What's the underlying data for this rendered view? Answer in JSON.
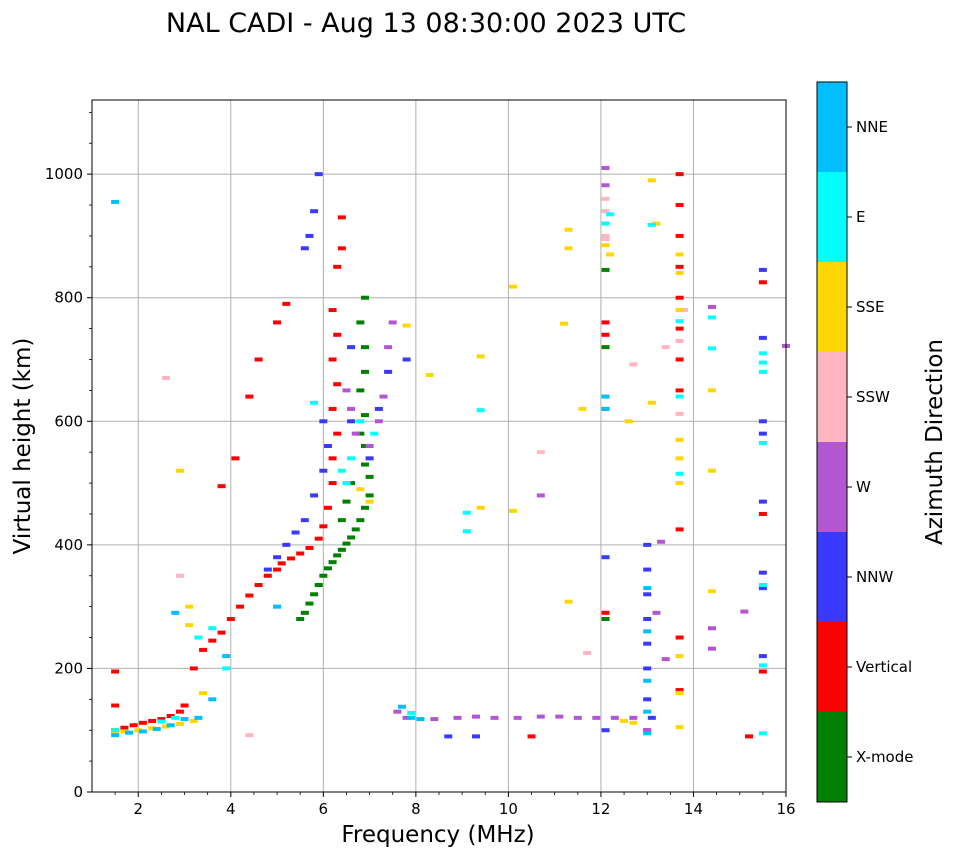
{
  "chart_data": {
    "type": "scatter",
    "title": "NAL CADI - Aug 13 08:30:00 2023 UTC",
    "xlabel": "Frequency (MHz)",
    "ylabel": "Virtual height (km)",
    "xlim": [
      1,
      16
    ],
    "ylim": [
      0,
      1120
    ],
    "xticks": [
      2,
      4,
      6,
      8,
      10,
      12,
      14,
      16
    ],
    "yticks": [
      0,
      200,
      400,
      600,
      800,
      1000
    ],
    "grid": true,
    "colorbar": {
      "label": "Azimuth Direction",
      "categories": [
        "X-mode",
        "Vertical",
        "NNW",
        "W",
        "SSW",
        "SSE",
        "E",
        "NNE"
      ],
      "colors": [
        "#008000",
        "#ff0000",
        "#3a3aff",
        "#b356d4",
        "#ffb6c1",
        "#ffd700",
        "#00ffff",
        "#00bfff"
      ]
    },
    "series": [
      {
        "name": "X-mode",
        "color": "#008000",
        "points": [
          [
            5.5,
            280
          ],
          [
            5.6,
            290
          ],
          [
            5.7,
            305
          ],
          [
            5.8,
            320
          ],
          [
            5.9,
            335
          ],
          [
            6.0,
            350
          ],
          [
            6.1,
            362
          ],
          [
            6.2,
            372
          ],
          [
            6.3,
            383
          ],
          [
            6.4,
            392
          ],
          [
            6.5,
            402
          ],
          [
            6.6,
            412
          ],
          [
            6.7,
            425
          ],
          [
            6.8,
            440
          ],
          [
            6.9,
            460
          ],
          [
            7.0,
            480
          ],
          [
            7.0,
            510
          ],
          [
            6.9,
            530
          ],
          [
            6.9,
            560
          ],
          [
            6.8,
            580
          ],
          [
            6.9,
            610
          ],
          [
            6.8,
            650
          ],
          [
            6.9,
            680
          ],
          [
            6.9,
            720
          ],
          [
            6.8,
            760
          ],
          [
            6.9,
            800
          ],
          [
            12.1,
            720
          ],
          [
            12.1,
            280
          ],
          [
            12.1,
            845
          ],
          [
            6.4,
            440
          ],
          [
            6.5,
            470
          ],
          [
            6.6,
            500
          ]
        ]
      },
      {
        "name": "Vertical",
        "color": "#ff0000",
        "points": [
          [
            1.5,
            100
          ],
          [
            1.7,
            104
          ],
          [
            1.9,
            108
          ],
          [
            2.1,
            112
          ],
          [
            2.3,
            115
          ],
          [
            2.5,
            118
          ],
          [
            2.7,
            123
          ],
          [
            2.9,
            130
          ],
          [
            3.0,
            140
          ],
          [
            3.2,
            200
          ],
          [
            3.4,
            230
          ],
          [
            3.6,
            245
          ],
          [
            3.8,
            258
          ],
          [
            4.0,
            280
          ],
          [
            4.2,
            300
          ],
          [
            4.4,
            318
          ],
          [
            4.6,
            335
          ],
          [
            4.8,
            350
          ],
          [
            5.0,
            360
          ],
          [
            5.1,
            370
          ],
          [
            5.3,
            378
          ],
          [
            5.5,
            386
          ],
          [
            5.7,
            395
          ],
          [
            5.9,
            410
          ],
          [
            6.0,
            430
          ],
          [
            6.1,
            460
          ],
          [
            6.2,
            500
          ],
          [
            6.2,
            540
          ],
          [
            6.3,
            580
          ],
          [
            6.2,
            620
          ],
          [
            6.3,
            660
          ],
          [
            6.2,
            700
          ],
          [
            6.3,
            740
          ],
          [
            6.2,
            780
          ],
          [
            6.3,
            850
          ],
          [
            6.4,
            880
          ],
          [
            6.4,
            930
          ],
          [
            5.0,
            760
          ],
          [
            5.2,
            790
          ],
          [
            4.6,
            700
          ],
          [
            4.4,
            640
          ],
          [
            4.1,
            540
          ],
          [
            3.8,
            495
          ],
          [
            1.5,
            195
          ],
          [
            1.5,
            140
          ],
          [
            12.1,
            760
          ],
          [
            12.1,
            740
          ],
          [
            12.1,
            620
          ],
          [
            12.1,
            290
          ],
          [
            13.7,
            1000
          ],
          [
            13.7,
            950
          ],
          [
            13.7,
            900
          ],
          [
            13.7,
            850
          ],
          [
            13.7,
            800
          ],
          [
            13.7,
            750
          ],
          [
            13.7,
            700
          ],
          [
            13.7,
            650
          ],
          [
            13.7,
            425
          ],
          [
            13.7,
            250
          ],
          [
            13.7,
            165
          ],
          [
            15.5,
            825
          ],
          [
            15.5,
            450
          ],
          [
            15.5,
            195
          ],
          [
            15.2,
            90
          ],
          [
            10.5,
            90
          ]
        ]
      },
      {
        "name": "NNW",
        "color": "#3a3aff",
        "points": [
          [
            5.9,
            1000
          ],
          [
            5.8,
            940
          ],
          [
            5.6,
            880
          ],
          [
            5.7,
            900
          ],
          [
            6.0,
            600
          ],
          [
            6.1,
            560
          ],
          [
            6.0,
            520
          ],
          [
            5.8,
            480
          ],
          [
            5.6,
            440
          ],
          [
            5.4,
            420
          ],
          [
            5.2,
            400
          ],
          [
            5.0,
            380
          ],
          [
            4.8,
            360
          ],
          [
            6.6,
            720
          ],
          [
            6.6,
            600
          ],
          [
            7.0,
            540
          ],
          [
            7.2,
            620
          ],
          [
            7.4,
            680
          ],
          [
            13.0,
            400
          ],
          [
            13.0,
            360
          ],
          [
            13.0,
            320
          ],
          [
            13.0,
            280
          ],
          [
            13.0,
            240
          ],
          [
            13.0,
            200
          ],
          [
            13.0,
            150
          ],
          [
            13.0,
            100
          ],
          [
            15.5,
            845
          ],
          [
            15.5,
            735
          ],
          [
            15.5,
            600
          ],
          [
            15.5,
            580
          ],
          [
            15.5,
            470
          ],
          [
            15.5,
            355
          ],
          [
            15.5,
            330
          ],
          [
            15.5,
            220
          ],
          [
            9.3,
            90
          ],
          [
            8.7,
            90
          ],
          [
            12.1,
            380
          ],
          [
            12.1,
            100
          ],
          [
            7.8,
            700
          ],
          [
            13.1,
            120
          ]
        ]
      },
      {
        "name": "W",
        "color": "#b356d4",
        "points": [
          [
            6.5,
            650
          ],
          [
            6.6,
            620
          ],
          [
            6.7,
            580
          ],
          [
            7.0,
            560
          ],
          [
            7.2,
            600
          ],
          [
            7.3,
            640
          ],
          [
            7.4,
            720
          ],
          [
            7.5,
            760
          ],
          [
            7.8,
            120
          ],
          [
            8.4,
            118
          ],
          [
            8.9,
            120
          ],
          [
            9.3,
            122
          ],
          [
            9.7,
            120
          ],
          [
            10.2,
            120
          ],
          [
            10.7,
            122
          ],
          [
            11.1,
            122
          ],
          [
            11.5,
            120
          ],
          [
            11.9,
            120
          ],
          [
            12.3,
            120
          ],
          [
            12.7,
            120
          ],
          [
            13.0,
            100
          ],
          [
            13.3,
            405
          ],
          [
            13.2,
            290
          ],
          [
            13.4,
            215
          ],
          [
            14.4,
            785
          ],
          [
            14.4,
            265
          ],
          [
            14.4,
            232
          ],
          [
            15.1,
            292
          ],
          [
            16.0,
            722
          ],
          [
            12.1,
            1010
          ],
          [
            12.1,
            982
          ],
          [
            10.7,
            480
          ],
          [
            7.6,
            130
          ]
        ]
      },
      {
        "name": "SSW",
        "color": "#ffb6c1",
        "points": [
          [
            12.1,
            960
          ],
          [
            12.1,
            940
          ],
          [
            12.1,
            900
          ],
          [
            12.7,
            692
          ],
          [
            13.7,
            612
          ],
          [
            13.7,
            730
          ],
          [
            13.8,
            780
          ],
          [
            13.4,
            720
          ],
          [
            11.7,
            225
          ],
          [
            10.7,
            550
          ],
          [
            2.9,
            350
          ],
          [
            2.6,
            670
          ],
          [
            4.4,
            92
          ],
          [
            12.1,
            895
          ]
        ]
      },
      {
        "name": "SSE",
        "color": "#ffd700",
        "points": [
          [
            1.5,
            95
          ],
          [
            1.7,
            98
          ],
          [
            2.0,
            100
          ],
          [
            2.3,
            103
          ],
          [
            2.6,
            106
          ],
          [
            2.9,
            110
          ],
          [
            3.2,
            115
          ],
          [
            3.1,
            270
          ],
          [
            3.1,
            300
          ],
          [
            3.4,
            160
          ],
          [
            2.9,
            520
          ],
          [
            6.8,
            490
          ],
          [
            7.0,
            470
          ],
          [
            7.8,
            755
          ],
          [
            8.3,
            675
          ],
          [
            9.4,
            460
          ],
          [
            9.4,
            705
          ],
          [
            10.1,
            455
          ],
          [
            10.1,
            818
          ],
          [
            11.3,
            880
          ],
          [
            11.3,
            910
          ],
          [
            11.2,
            758
          ],
          [
            11.6,
            620
          ],
          [
            11.3,
            308
          ],
          [
            12.2,
            870
          ],
          [
            12.1,
            885
          ],
          [
            12.6,
            600
          ],
          [
            13.1,
            990
          ],
          [
            13.2,
            920
          ],
          [
            13.1,
            630
          ],
          [
            13.7,
            870
          ],
          [
            13.7,
            840
          ],
          [
            13.7,
            780
          ],
          [
            13.7,
            570
          ],
          [
            13.7,
            540
          ],
          [
            13.7,
            500
          ],
          [
            13.7,
            220
          ],
          [
            13.7,
            160
          ],
          [
            13.7,
            105
          ],
          [
            14.4,
            650
          ],
          [
            14.4,
            520
          ],
          [
            14.4,
            325
          ],
          [
            12.5,
            115
          ],
          [
            12.7,
            112
          ]
        ]
      },
      {
        "name": "E",
        "color": "#00ffff",
        "points": [
          [
            1.5,
            100
          ],
          [
            2.5,
            114
          ],
          [
            2.8,
            120
          ],
          [
            3.3,
            250
          ],
          [
            3.6,
            265
          ],
          [
            3.9,
            200
          ],
          [
            5.8,
            630
          ],
          [
            6.4,
            520
          ],
          [
            6.5,
            500
          ],
          [
            6.6,
            540
          ],
          [
            6.8,
            600
          ],
          [
            7.1,
            580
          ],
          [
            9.4,
            618
          ],
          [
            9.1,
            452
          ],
          [
            9.1,
            422
          ],
          [
            12.2,
            935
          ],
          [
            12.1,
            920
          ],
          [
            13.1,
            918
          ],
          [
            13.7,
            762
          ],
          [
            13.7,
            640
          ],
          [
            13.7,
            515
          ],
          [
            14.4,
            768
          ],
          [
            14.4,
            718
          ],
          [
            15.5,
            710
          ],
          [
            15.5,
            695
          ],
          [
            15.5,
            680
          ],
          [
            15.5,
            565
          ],
          [
            15.5,
            335
          ],
          [
            15.5,
            205
          ],
          [
            15.5,
            95
          ],
          [
            7.9,
            128
          ]
        ]
      },
      {
        "name": "NNE",
        "color": "#00bfff",
        "points": [
          [
            1.5,
            92
          ],
          [
            1.8,
            96
          ],
          [
            2.1,
            98
          ],
          [
            2.4,
            102
          ],
          [
            2.7,
            108
          ],
          [
            3.0,
            118
          ],
          [
            3.3,
            120
          ],
          [
            3.6,
            150
          ],
          [
            3.9,
            220
          ],
          [
            7.9,
            120
          ],
          [
            8.1,
            118
          ],
          [
            7.7,
            138
          ],
          [
            12.1,
            620
          ],
          [
            12.1,
            640
          ],
          [
            13.0,
            330
          ],
          [
            13.0,
            260
          ],
          [
            13.0,
            180
          ],
          [
            13.0,
            130
          ],
          [
            13.0,
            95
          ],
          [
            5.0,
            300
          ],
          [
            2.8,
            290
          ],
          [
            1.5,
            955
          ]
        ]
      }
    ]
  }
}
